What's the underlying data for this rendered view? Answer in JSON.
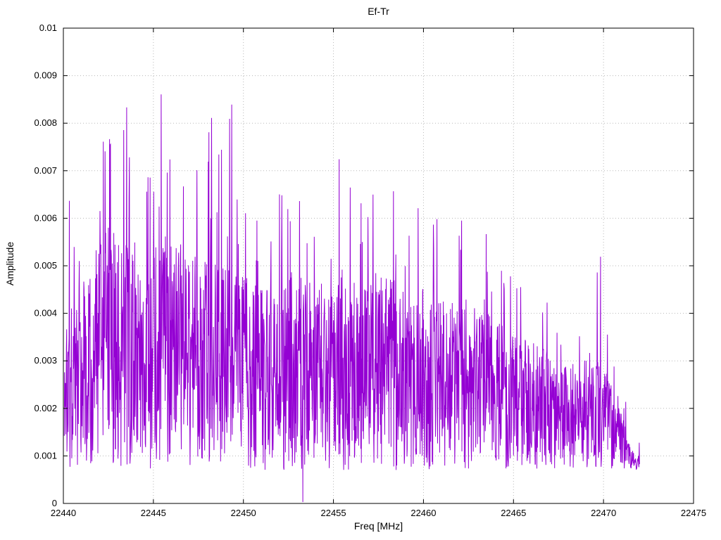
{
  "chart_data": {
    "type": "line",
    "title": "Ef-Tr",
    "xlabel": "Freq [MHz]",
    "ylabel": "Amplitude",
    "xlim": [
      22440,
      22475
    ],
    "ylim": [
      0,
      0.01
    ],
    "grid": true,
    "legend_position": "none",
    "background_color": "#ffffff",
    "border_color": "#000000",
    "grid_color": "#b8b8b8",
    "xticks": [
      {
        "v": 22440,
        "label": "22440"
      },
      {
        "v": 22445,
        "label": "22445"
      },
      {
        "v": 22450,
        "label": "22450"
      },
      {
        "v": 22455,
        "label": "22455"
      },
      {
        "v": 22460,
        "label": "22460"
      },
      {
        "v": 22465,
        "label": "22465"
      },
      {
        "v": 22470,
        "label": "22470"
      },
      {
        "v": 22475,
        "label": "22475"
      }
    ],
    "yticks": [
      {
        "v": 0,
        "label": "0"
      },
      {
        "v": 0.001,
        "label": "0.001"
      },
      {
        "v": 0.002,
        "label": "0.002"
      },
      {
        "v": 0.003,
        "label": "0.003"
      },
      {
        "v": 0.004,
        "label": "0.004"
      },
      {
        "v": 0.005,
        "label": "0.005"
      },
      {
        "v": 0.006,
        "label": "0.006"
      },
      {
        "v": 0.007,
        "label": "0.007"
      },
      {
        "v": 0.008,
        "label": "0.008"
      },
      {
        "v": 0.009,
        "label": "0.009"
      },
      {
        "v": 0.01,
        "label": "0.01"
      }
    ],
    "series": [
      {
        "name": "Ef-Tr",
        "color": "#9400d3",
        "x_start": 22440.05,
        "x_end": 22472.0,
        "samples_per_mhz": 60,
        "noise_floor": 0.0007,
        "spike_probability": 0.06,
        "seed": 1337,
        "zero_dips": [
          22453.3
        ],
        "envelope": [
          {
            "x": 22440.0,
            "typ": 0.0036,
            "peak": 0.0073
          },
          {
            "x": 22441.0,
            "typ": 0.005,
            "peak": 0.0079
          },
          {
            "x": 22442.0,
            "typ": 0.0055,
            "peak": 0.0083
          },
          {
            "x": 22442.5,
            "typ": 0.0058,
            "peak": 0.009
          },
          {
            "x": 22443.5,
            "typ": 0.0056,
            "peak": 0.0084
          },
          {
            "x": 22444.5,
            "typ": 0.0048,
            "peak": 0.0063
          },
          {
            "x": 22445.5,
            "typ": 0.006,
            "peak": 0.0098
          },
          {
            "x": 22446.5,
            "typ": 0.0052,
            "peak": 0.0075
          },
          {
            "x": 22447.5,
            "typ": 0.0054,
            "peak": 0.007
          },
          {
            "x": 22448.6,
            "typ": 0.005,
            "peak": 0.0087
          },
          {
            "x": 22450.0,
            "typ": 0.0048,
            "peak": 0.0088
          },
          {
            "x": 22451.5,
            "typ": 0.0045,
            "peak": 0.006
          },
          {
            "x": 22452.7,
            "typ": 0.005,
            "peak": 0.0073
          },
          {
            "x": 22454.0,
            "typ": 0.0046,
            "peak": 0.006
          },
          {
            "x": 22455.2,
            "typ": 0.005,
            "peak": 0.0082
          },
          {
            "x": 22456.5,
            "typ": 0.0047,
            "peak": 0.0066
          },
          {
            "x": 22457.6,
            "typ": 0.005,
            "peak": 0.0085
          },
          {
            "x": 22459.0,
            "typ": 0.0045,
            "peak": 0.0058
          },
          {
            "x": 22460.8,
            "typ": 0.0046,
            "peak": 0.0069
          },
          {
            "x": 22462.0,
            "typ": 0.0042,
            "peak": 0.006
          },
          {
            "x": 22463.8,
            "typ": 0.004,
            "peak": 0.0064
          },
          {
            "x": 22465.0,
            "typ": 0.0036,
            "peak": 0.0048
          },
          {
            "x": 22466.5,
            "typ": 0.0033,
            "peak": 0.0045
          },
          {
            "x": 22468.0,
            "typ": 0.0029,
            "peak": 0.0035
          },
          {
            "x": 22469.8,
            "typ": 0.0031,
            "peak": 0.0053
          },
          {
            "x": 22470.8,
            "typ": 0.0022,
            "peak": 0.003
          },
          {
            "x": 22471.5,
            "typ": 0.0012,
            "peak": 0.0019
          },
          {
            "x": 22472.0,
            "typ": 0.001,
            "peak": 0.0015
          }
        ]
      }
    ]
  }
}
